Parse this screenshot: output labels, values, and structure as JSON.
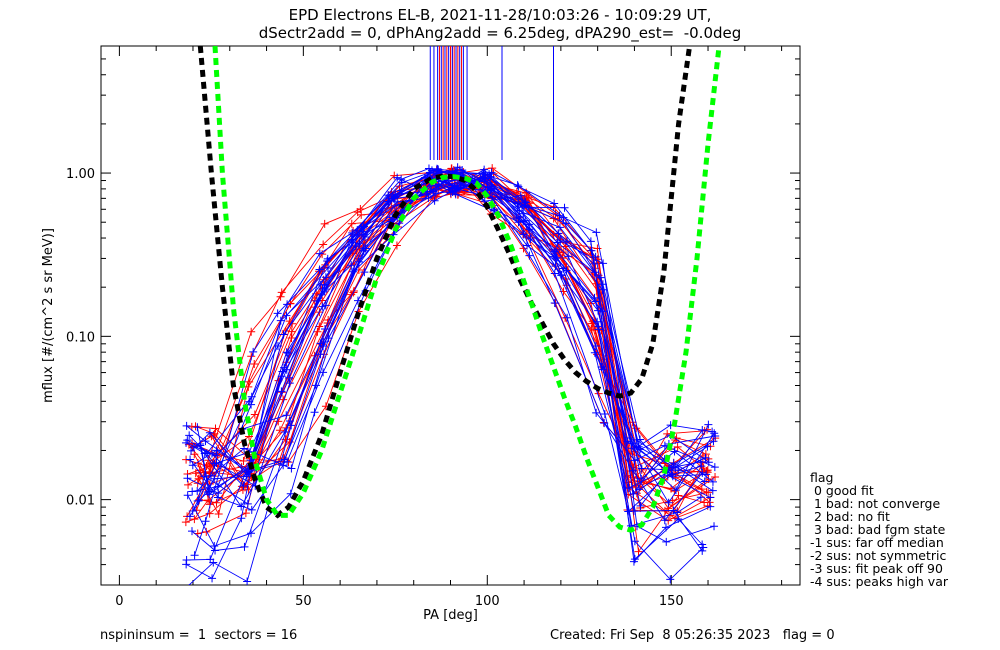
{
  "title": {
    "line1": "EPD Electrons EL-B, 2021-11-28/10:03:26 - 10:09:29 UT,",
    "line2": "dSectr2add = 0, dPhAng2add = 6.25deg, dPA290_est=  -0.0deg"
  },
  "footer": {
    "left": "nspininsum =  1  sectors = 16",
    "right": "Created: Fri Sep  8 05:26:35 2023   flag = 0"
  },
  "legend": {
    "title": "flag",
    "items": [
      " 0 good fit",
      " 1 bad: not converge",
      " 2 bad: no fit",
      " 3 bad: bad fgm state",
      "-1 sus: far off median",
      "-2 sus: not symmetric",
      "-3 sus: fit peak off 90",
      "-4 sus: peaks high var"
    ]
  },
  "chart_data": {
    "type": "line",
    "xlabel": "PA [deg]",
    "ylabel": "mflux [#/(cm^2 s sr MeV)]",
    "xlim": [
      -5,
      185
    ],
    "ylim": [
      0.003,
      6
    ],
    "yscale": "log",
    "x_ticks": [
      0,
      50,
      100,
      150
    ],
    "y_ticks": [
      {
        "value": 0.01,
        "label": "0.01"
      },
      {
        "value": 0.1,
        "label": "0.10"
      },
      {
        "value": 1.0,
        "label": "1.00"
      }
    ],
    "fit_curves": [
      {
        "color": "#000000",
        "style": "dashed",
        "x": [
          22,
          25,
          28,
          31,
          34,
          37,
          40,
          43,
          46,
          50,
          55,
          60,
          65,
          70,
          75,
          80,
          85,
          88,
          91,
          94,
          97,
          100,
          103,
          106,
          109,
          112,
          115,
          118,
          121,
          124,
          127,
          130,
          133,
          136,
          139,
          142,
          145,
          148,
          150,
          152,
          155
        ],
        "y": [
          6,
          1.0,
          0.2,
          0.05,
          0.022,
          0.013,
          0.009,
          0.008,
          0.009,
          0.013,
          0.025,
          0.06,
          0.14,
          0.3,
          0.55,
          0.8,
          0.93,
          0.96,
          0.95,
          0.9,
          0.78,
          0.62,
          0.45,
          0.32,
          0.22,
          0.16,
          0.12,
          0.09,
          0.072,
          0.06,
          0.053,
          0.048,
          0.045,
          0.043,
          0.045,
          0.055,
          0.09,
          0.25,
          0.7,
          2.0,
          6
        ]
      },
      {
        "color": "#00ff00",
        "style": "dashed",
        "x": [
          26,
          28,
          31,
          34,
          37,
          40,
          43,
          46,
          50,
          55,
          60,
          65,
          70,
          75,
          80,
          85,
          88,
          91,
          94,
          97,
          100,
          103,
          106,
          109,
          112,
          115,
          118,
          121,
          124,
          127,
          130,
          133,
          136,
          139,
          142,
          145,
          148,
          151,
          154,
          157,
          160,
          163
        ],
        "y": [
          6,
          1.0,
          0.15,
          0.04,
          0.017,
          0.01,
          0.008,
          0.008,
          0.011,
          0.02,
          0.045,
          0.1,
          0.23,
          0.45,
          0.7,
          0.88,
          0.94,
          0.95,
          0.93,
          0.87,
          0.72,
          0.55,
          0.38,
          0.25,
          0.16,
          0.1,
          0.065,
          0.042,
          0.028,
          0.018,
          0.012,
          0.008,
          0.0068,
          0.0065,
          0.007,
          0.009,
          0.014,
          0.03,
          0.08,
          0.3,
          1.5,
          6
        ]
      }
    ],
    "series": [
      {
        "color": "#ff0000",
        "count": 22
      },
      {
        "color": "#0000ff",
        "count": 24
      }
    ],
    "peak_markers": {
      "color_red": "#ff0000",
      "color_blue": "#0000ff",
      "red_x": [
        87,
        88,
        89,
        90,
        90.5,
        91,
        92,
        93
      ],
      "blue_x": [
        84.5,
        85.5,
        86.5,
        87.5,
        88.5,
        89.5,
        90.5,
        91.5,
        92.5,
        93.5,
        94.5,
        104,
        118
      ]
    }
  }
}
